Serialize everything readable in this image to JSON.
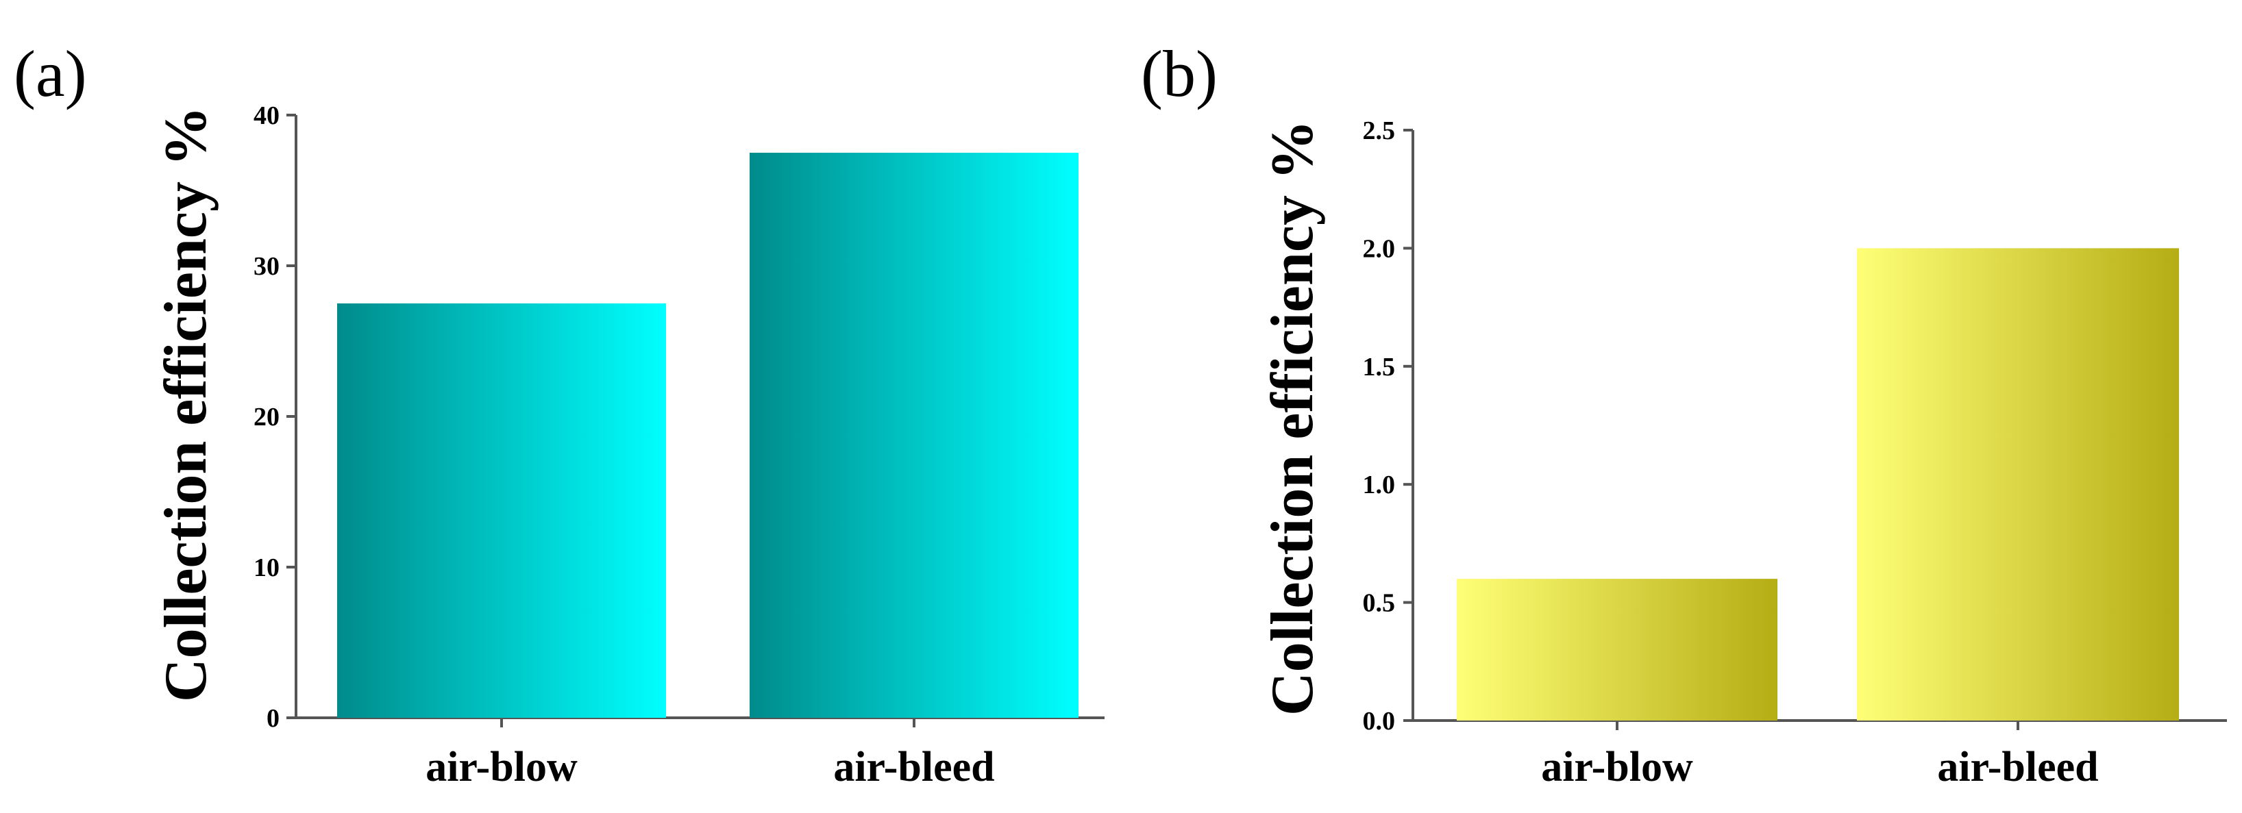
{
  "chart_data": [
    {
      "type": "bar",
      "panel_label": "(a)",
      "categories": [
        "air-blow",
        "air-bleed"
      ],
      "values": [
        27.5,
        37.5
      ],
      "title": "",
      "xlabel": "",
      "ylabel": "Collection efficiency %",
      "ylim": [
        0,
        40
      ],
      "yticks": [
        0,
        10,
        20,
        30,
        40
      ],
      "ytick_labels": [
        "0",
        "10",
        "20",
        "30",
        "40"
      ],
      "grid": false,
      "legend": "none",
      "colors": {
        "bar_dark": "#008b8b",
        "bar_light": "#00ffff",
        "axis": "#555555"
      }
    },
    {
      "type": "bar",
      "panel_label": "(b)",
      "categories": [
        "air-blow",
        "air-bleed"
      ],
      "values": [
        0.6,
        2.0
      ],
      "title": "",
      "xlabel": "",
      "ylabel": "Collection efficiency %",
      "ylim": [
        0,
        2.5
      ],
      "yticks": [
        0,
        0.5,
        1.0,
        1.5,
        2.0,
        2.5
      ],
      "ytick_labels": [
        "0.0",
        "0.5",
        "1.0",
        "1.5",
        "2.0",
        "2.5"
      ],
      "grid": false,
      "legend": "none",
      "colors": {
        "bar_dark": "#b5ad14",
        "bar_light": "#ffff77",
        "axis": "#555555"
      }
    }
  ]
}
